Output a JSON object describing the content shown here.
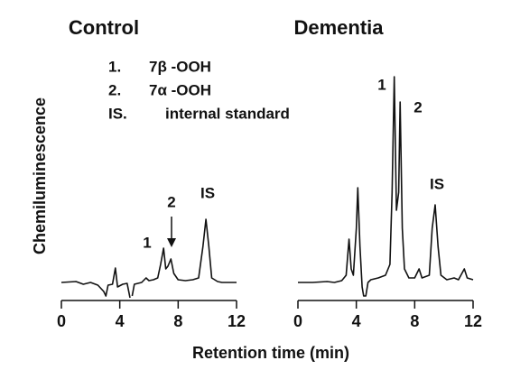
{
  "chart_data": [
    {
      "type": "line",
      "title": "Control",
      "x": [
        0,
        1,
        1.5,
        2,
        2.5,
        2.9,
        3.05,
        3.2,
        3.5,
        3.7,
        3.85,
        4.2,
        4.5,
        4.7,
        4.75,
        4.85,
        5.0,
        5.5,
        5.8,
        6.0,
        6.3,
        6.6,
        6.8,
        7.0,
        7.15,
        7.3,
        7.5,
        7.7,
        8.0,
        8.5,
        9.0,
        9.4,
        9.7,
        9.9,
        10.1,
        10.3,
        10.7,
        11,
        12
      ],
      "values": [
        0,
        1,
        -2,
        0,
        -3,
        -10,
        -15,
        -3,
        -2,
        16,
        -5,
        -2,
        -1,
        -17,
        null,
        -15,
        -2,
        0,
        5,
        2,
        3,
        5,
        20,
        38,
        15,
        18,
        26,
        10,
        3,
        2,
        3,
        5,
        40,
        70,
        40,
        5,
        1,
        0,
        0
      ],
      "color": "#111111",
      "xlim": [
        0,
        12
      ],
      "xticks": [
        0,
        4,
        8,
        12
      ],
      "ylim": [
        -20,
        230
      ],
      "annotations": [
        "1",
        "2",
        "IS"
      ]
    },
    {
      "type": "line",
      "title": "Dementia",
      "x": [
        0,
        1,
        2,
        2.5,
        3,
        3.3,
        3.5,
        3.65,
        3.8,
        4.0,
        4.1,
        4.25,
        4.4,
        4.5,
        4.65,
        4.8,
        5.0,
        5.5,
        6.0,
        6.3,
        6.45,
        6.6,
        6.75,
        6.9,
        7.0,
        7.15,
        7.3,
        7.6,
        8.0,
        8.3,
        8.5,
        9.0,
        9.2,
        9.4,
        9.6,
        9.8,
        10.2,
        10.7,
        11,
        11.4,
        11.6,
        12
      ],
      "values": [
        0,
        0,
        1,
        0,
        2,
        8,
        48,
        15,
        8,
        60,
        105,
        40,
        -5,
        -15,
        -15,
        0,
        3,
        5,
        8,
        20,
        100,
        228,
        80,
        100,
        200,
        60,
        15,
        5,
        5,
        15,
        5,
        8,
        60,
        86,
        40,
        8,
        3,
        5,
        3,
        15,
        5,
        3
      ],
      "color": "#111111",
      "xlim": [
        0,
        12
      ],
      "xticks": [
        0,
        4,
        8,
        12
      ],
      "ylim": [
        -20,
        230
      ],
      "annotations": [
        "1",
        "2",
        "IS"
      ]
    }
  ],
  "axis_labels": {
    "x": "Retention time (min)",
    "y": "Chemiluminescence"
  },
  "legend_notes": [
    {
      "key": "1.",
      "text": "7β -OOH"
    },
    {
      "key": "2.",
      "text": "7α -OOH"
    },
    {
      "key": "IS.",
      "text": "internal standard"
    }
  ]
}
